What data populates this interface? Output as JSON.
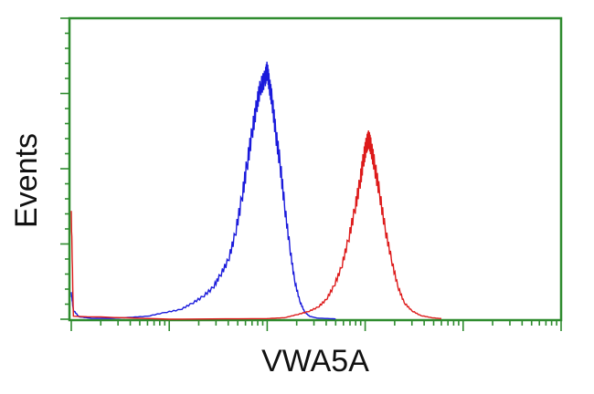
{
  "chart_data": {
    "type": "line",
    "title": "",
    "xlabel": "VWA5A",
    "ylabel": "Events",
    "x_scale": "log",
    "xlim": [
      1,
      100000
    ],
    "ylim": [
      0,
      100
    ],
    "grid": false,
    "legend": "none",
    "frame_color": "#2e8b2e",
    "series": [
      {
        "color": "#1a1adb",
        "points": [
          [
            1,
            9
          ],
          [
            1.05,
            3
          ],
          [
            1.2,
            0.8
          ],
          [
            1.6,
            0.3
          ],
          [
            2.5,
            0.3
          ],
          [
            4,
            0.6
          ],
          [
            6,
            1.0
          ],
          [
            9,
            2.2
          ],
          [
            13,
            3.2
          ],
          [
            17,
            5.2
          ],
          [
            22,
            7.5
          ],
          [
            28,
            10.5
          ],
          [
            33,
            14.5
          ],
          [
            40,
            19.5
          ],
          [
            47,
            28
          ],
          [
            55,
            40
          ],
          [
            62,
            51
          ],
          [
            70,
            62
          ],
          [
            78,
            71
          ],
          [
            85,
            77
          ],
          [
            95,
            80
          ],
          [
            100,
            83
          ],
          [
            105,
            78
          ],
          [
            112,
            73
          ],
          [
            122,
            62
          ],
          [
            135,
            52
          ],
          [
            150,
            38
          ],
          [
            170,
            24
          ],
          [
            190,
            13
          ],
          [
            215,
            6
          ],
          [
            240,
            2.5
          ],
          [
            270,
            1.0
          ],
          [
            320,
            0.4
          ],
          [
            500,
            0.1
          ]
        ]
      },
      {
        "color": "#dd1a1a",
        "points": [
          [
            1,
            36
          ],
          [
            1.05,
            1
          ],
          [
            10,
            0
          ],
          [
            100,
            0.2
          ],
          [
            150,
            0.5
          ],
          [
            200,
            1.5
          ],
          [
            260,
            2.5
          ],
          [
            330,
            4
          ],
          [
            400,
            6.5
          ],
          [
            480,
            11
          ],
          [
            570,
            17
          ],
          [
            670,
            26
          ],
          [
            780,
            36
          ],
          [
            880,
            45
          ],
          [
            960,
            53
          ],
          [
            1030,
            58
          ],
          [
            1090,
            60
          ],
          [
            1150,
            57
          ],
          [
            1250,
            51
          ],
          [
            1400,
            42
          ],
          [
            1600,
            30
          ],
          [
            1850,
            20
          ],
          [
            2150,
            11
          ],
          [
            2500,
            5.5
          ],
          [
            3000,
            2.8
          ],
          [
            3700,
            1.2
          ],
          [
            4800,
            0.5
          ],
          [
            6000,
            0.2
          ]
        ]
      }
    ]
  }
}
